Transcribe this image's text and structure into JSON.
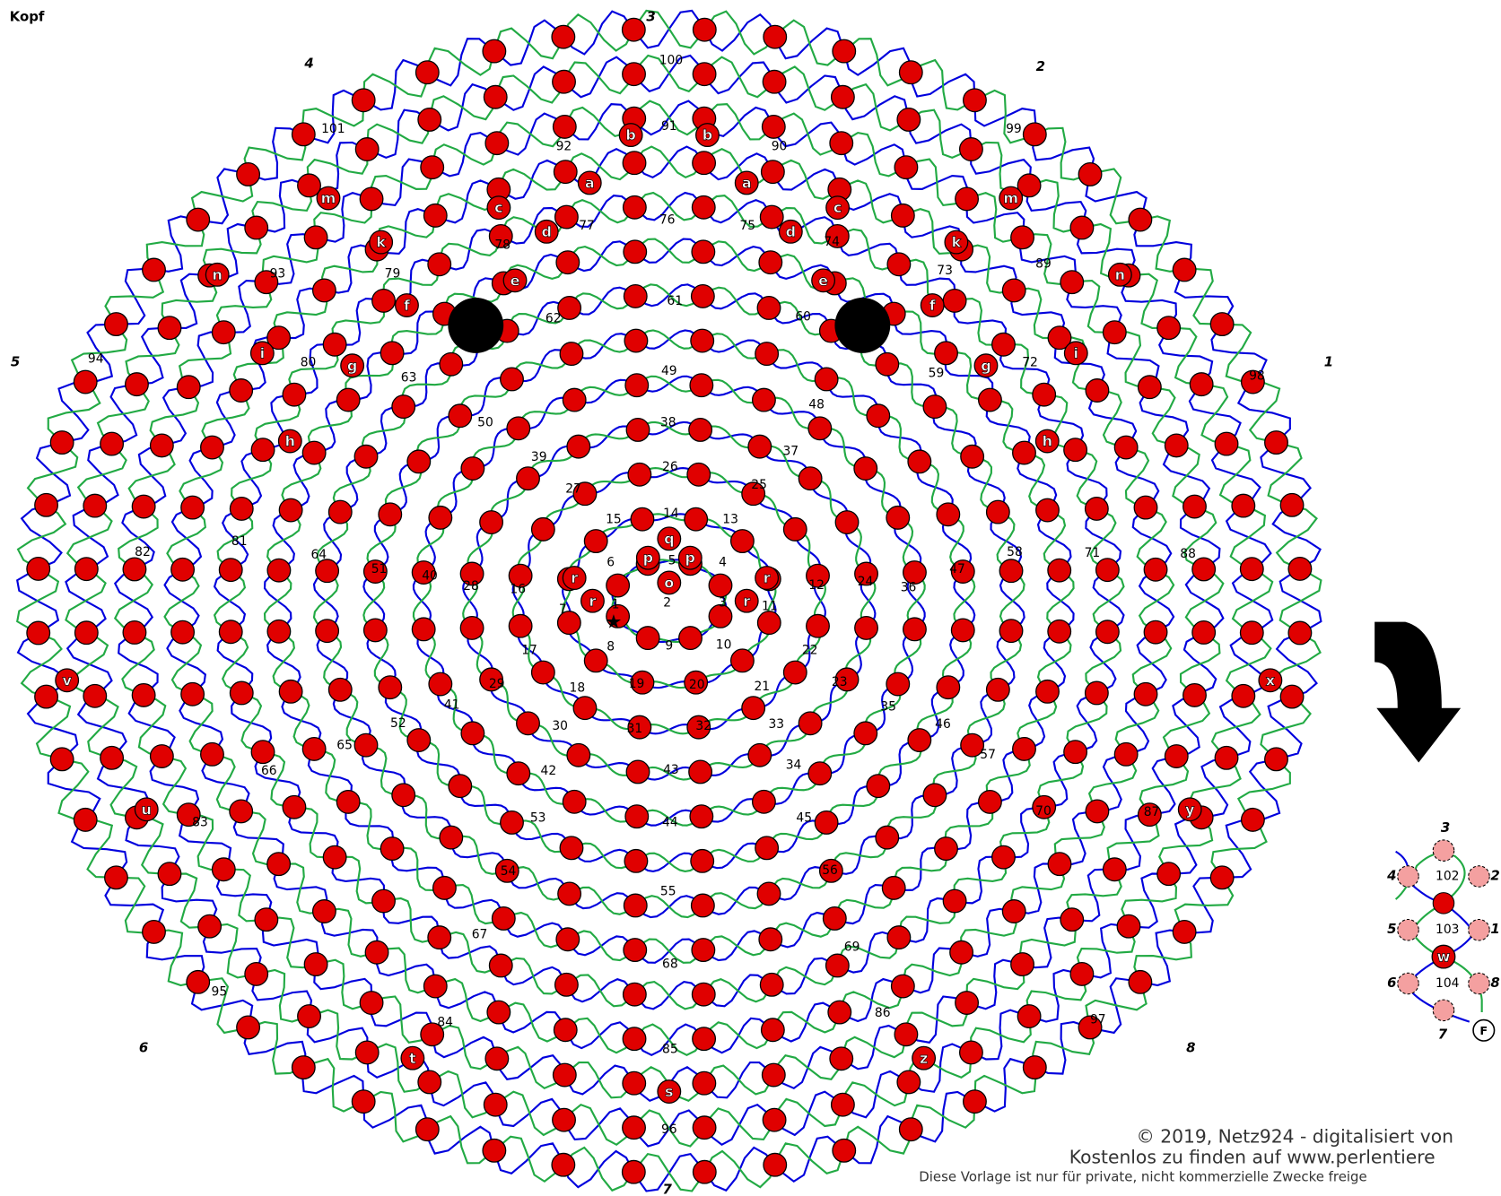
{
  "header": {
    "title": "Kopf"
  },
  "regions": [
    "1",
    "2",
    "3",
    "4",
    "5",
    "6",
    "7",
    "8",
    "9",
    "10",
    "11",
    "12",
    "13",
    "14",
    "15",
    "16",
    "17",
    "18",
    "19",
    "20",
    "21",
    "22",
    "23",
    "24",
    "25",
    "26",
    "27",
    "28",
    "29",
    "30",
    "31",
    "32",
    "33",
    "34",
    "35",
    "36",
    "37",
    "38",
    "39",
    "40",
    "41",
    "42",
    "43",
    "44",
    "45",
    "46",
    "47",
    "48",
    "49",
    "50",
    "51",
    "52",
    "53",
    "54",
    "55",
    "56",
    "57",
    "58",
    "59",
    "60",
    "61",
    "62",
    "63",
    "64",
    "65",
    "66",
    "67",
    "68",
    "69",
    "70",
    "71",
    "72",
    "73",
    "74",
    "75",
    "76",
    "77",
    "78",
    "79",
    "80",
    "81",
    "82",
    "83",
    "84",
    "85",
    "86",
    "87",
    "88",
    "89",
    "90",
    "91",
    "92",
    "93",
    "94",
    "95",
    "96",
    "97",
    "98",
    "99",
    "100",
    "101",
    "102",
    "103",
    "104"
  ],
  "bead_letters": [
    "b",
    "b",
    "a",
    "a",
    "c",
    "c",
    "d",
    "d",
    "e",
    "e",
    "k",
    "k",
    "m",
    "m",
    "n",
    "n",
    "f",
    "f",
    "i",
    "i",
    "g",
    "g",
    "h",
    "h",
    "q",
    "p",
    "p",
    "o",
    "r",
    "r",
    "r",
    "r",
    "v",
    "x",
    "u",
    "y",
    "t",
    "z",
    "s",
    "w"
  ],
  "finish": "F",
  "thread_numbers": [
    "3",
    "4",
    "2",
    "5",
    "1",
    "6",
    "8",
    "7"
  ],
  "small_thread_numbers": [
    "3",
    "4",
    "2",
    "5",
    "1",
    "6",
    "8",
    "7"
  ],
  "footer": {
    "copyright": "© 2019, Netz924 - digitalisiert von",
    "source": "Kostenlos zu finden auf www.perlentiere",
    "notice": "Diese Vorlage ist nur für private, nicht kommerzielle Zwecke freige"
  }
}
